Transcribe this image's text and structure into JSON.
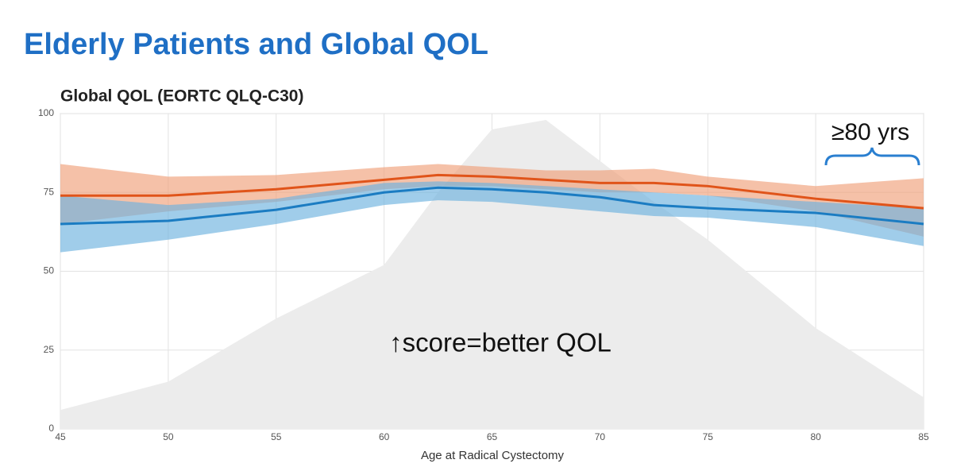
{
  "chart_data": {
    "type": "line",
    "page_title": "Elderly Patients and Global QOL",
    "title": "Global QOL (EORTC QLQ-C30)",
    "x_label": "Age at Radical Cystectomy",
    "annotations": [
      "↑score=better QOL",
      "≥80 yrs"
    ],
    "x": [
      45,
      50,
      55,
      60,
      62.5,
      65,
      67.5,
      70,
      72.5,
      75,
      80,
      85
    ],
    "xlim": [
      45,
      85
    ],
    "xticks": [
      45,
      50,
      55,
      60,
      65,
      70,
      75,
      80,
      85
    ],
    "ylim": [
      0,
      100
    ],
    "yticks": [
      0,
      25,
      50,
      75,
      100
    ],
    "grid": true,
    "density": {
      "color": "#ececec",
      "values": [
        6,
        15,
        35,
        52,
        75,
        95,
        98,
        85,
        72,
        60,
        32,
        10
      ]
    },
    "series": [
      {
        "color": "#e0541a",
        "band_color": "#f0a07a",
        "values": [
          74,
          74,
          76,
          79,
          80.5,
          80,
          79,
          78,
          78,
          77,
          73,
          70
        ],
        "upper": [
          84,
          80,
          80.5,
          83,
          84,
          83,
          82,
          82,
          82.5,
          80,
          77,
          79.5
        ],
        "lower": [
          65,
          69,
          72,
          76,
          77,
          77,
          76,
          75,
          75,
          74,
          69,
          61
        ]
      },
      {
        "color": "#1b7cc2",
        "band_color": "#6db2df",
        "values": [
          65,
          66,
          69.5,
          75,
          76.5,
          76,
          75,
          73.5,
          71,
          70,
          68.5,
          65
        ],
        "upper": [
          74,
          71,
          73,
          78,
          78.5,
          78,
          77,
          76,
          75,
          74,
          72,
          70
        ],
        "lower": [
          56,
          60,
          65,
          71,
          72.5,
          72,
          70.5,
          69,
          67.5,
          67,
          64,
          58
        ]
      }
    ]
  }
}
